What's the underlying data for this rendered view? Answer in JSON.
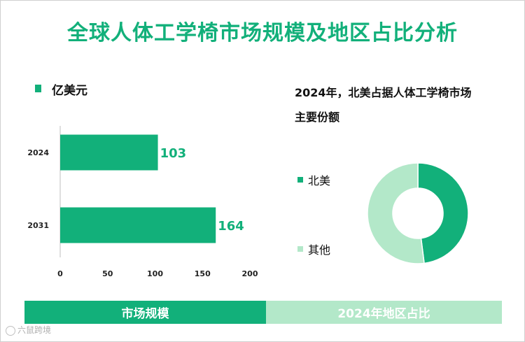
{
  "title": "全球人体工学椅市场规模及地区占比分析",
  "colors": {
    "accent": "#12b07a",
    "light": "#b3e8c9"
  },
  "footer": {
    "left_label": "市场规模",
    "right_label": "2024年地区占比"
  },
  "logo": {
    "text": "六鼠跨境"
  },
  "chart_data": [
    {
      "type": "bar",
      "orientation": "horizontal",
      "categories": [
        "2024",
        "2031"
      ],
      "values": [
        103,
        164
      ],
      "data_labels": [
        "103",
        "164"
      ],
      "legend": [
        "亿美元"
      ],
      "xticks": [
        "0",
        "50",
        "100",
        "150",
        "200"
      ],
      "xlim": [
        0,
        200
      ],
      "grid": false
    },
    {
      "type": "pie",
      "donut": true,
      "title_line1": "2024年，北美占据人体工学椅市场",
      "title_line2": "主要份额",
      "labels": [
        "北美",
        "其他"
      ],
      "values": [
        48,
        52
      ],
      "colors": [
        "#12b07a",
        "#b3e8c9"
      ],
      "legend_placement": "left"
    }
  ]
}
